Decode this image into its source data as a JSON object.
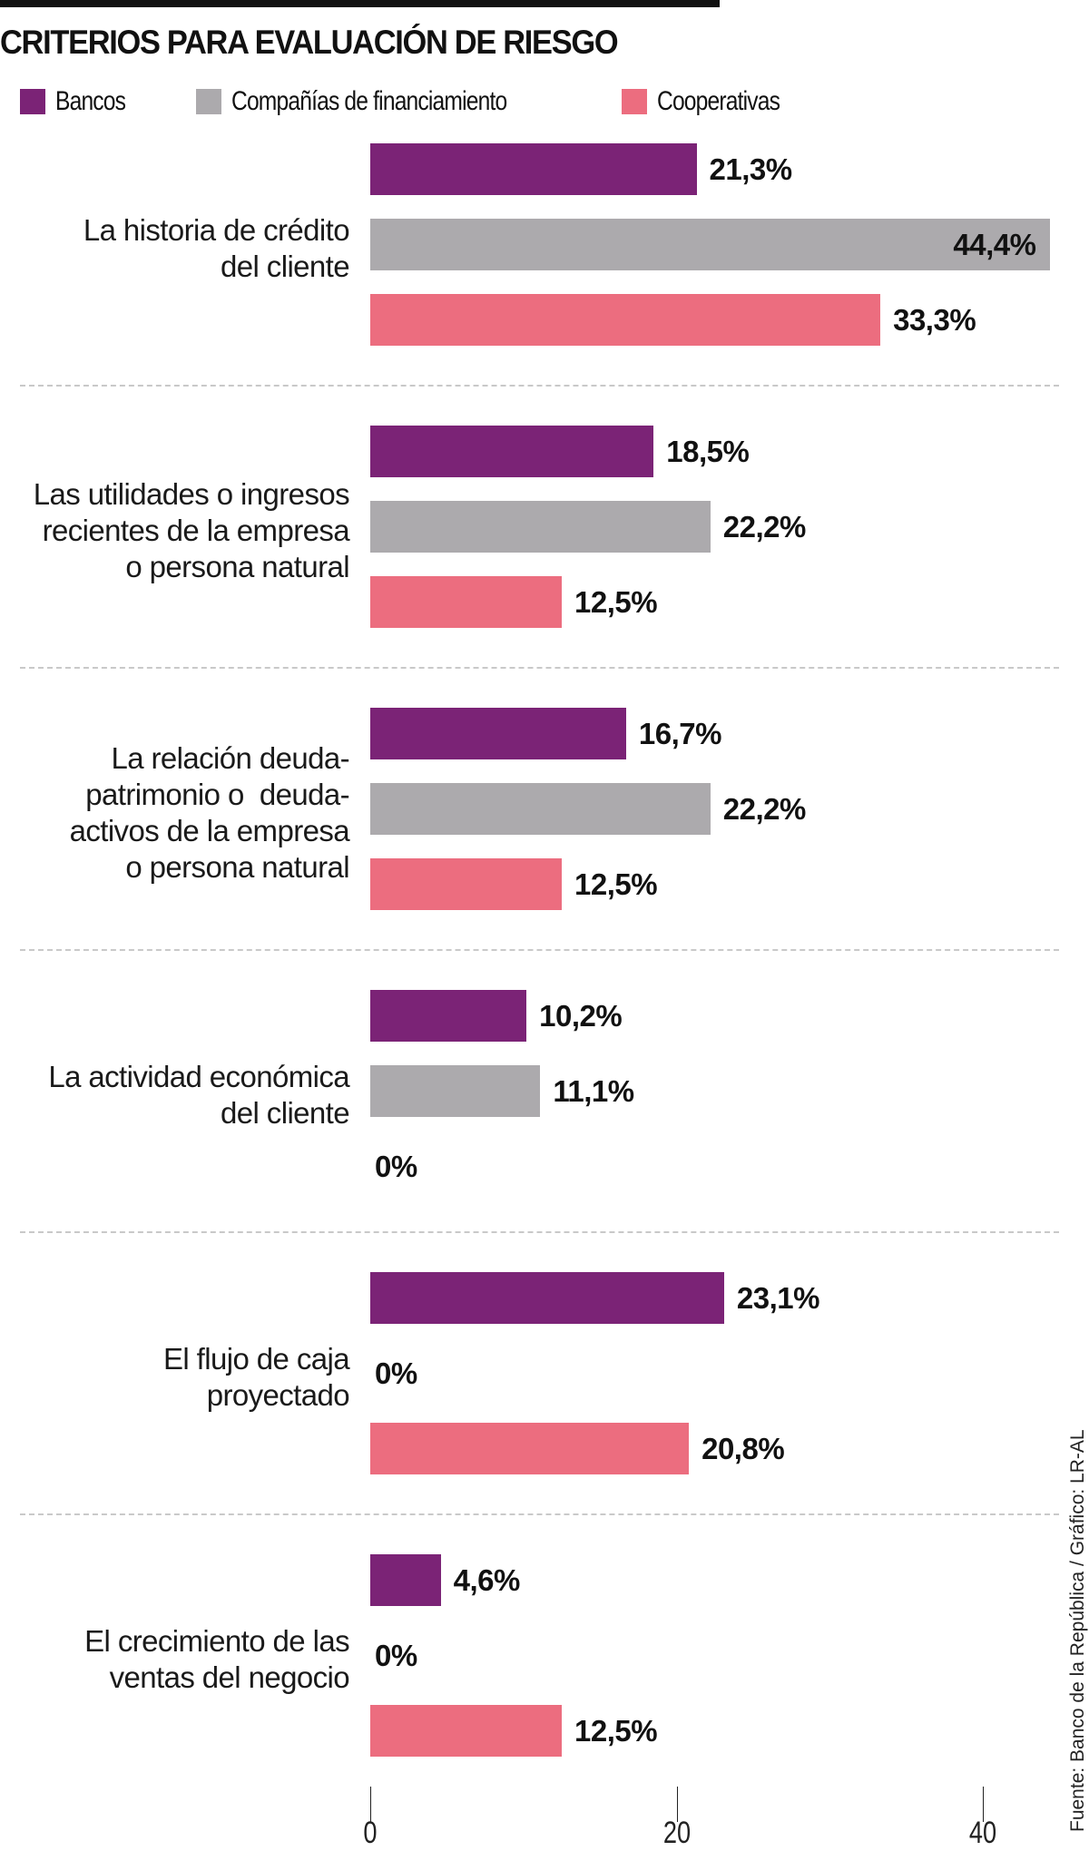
{
  "title": "CRITERIOS PARA EVALUACIÓN DE RIESGO",
  "source": "Fuente: Banco de la República / Gráfico: LR-AL",
  "legend": [
    {
      "label": "Bancos",
      "color": "#7B2376"
    },
    {
      "label": "Compañías de financiamiento",
      "color": "#ACAAAD"
    },
    {
      "label": "Cooperativas",
      "color": "#EC6D7F"
    }
  ],
  "chart_data": {
    "type": "bar",
    "orientation": "horizontal",
    "title": "CRITERIOS PARA EVALUACIÓN DE RIESGO",
    "xlabel": "",
    "ylabel": "",
    "xlim": [
      0,
      45
    ],
    "xticks": [
      0,
      20,
      40
    ],
    "xtick_labels": [
      "0",
      "20",
      "40"
    ],
    "grid": false,
    "legend_position": "top",
    "unit": "%",
    "categories": [
      "La historia de crédito\ndel cliente",
      "Las utilidades o ingresos\nrecientes de la empresa\no persona natural",
      "La relación deuda-\npatrimonio o  deuda-\nactivos de la empresa\no persona natural",
      "La actividad económica\ndel cliente",
      "El flujo de caja\nproyectado",
      "El crecimiento de las\nventas del negocio"
    ],
    "series": [
      {
        "name": "Bancos",
        "color": "#7B2376",
        "values": [
          21.3,
          18.5,
          16.7,
          10.2,
          23.1,
          4.6
        ],
        "labels": [
          "21,3%",
          "18,5%",
          "16,7%",
          "10,2%",
          "23,1%",
          "4,6%"
        ]
      },
      {
        "name": "Compañías de financiamiento",
        "color": "#ACAAAD",
        "values": [
          44.4,
          22.2,
          22.2,
          11.1,
          0,
          0
        ],
        "labels": [
          "44,4%",
          "22,2%",
          "22,2%",
          "11,1%",
          "0%",
          "0%"
        ]
      },
      {
        "name": "Cooperativas",
        "color": "#EC6D7F",
        "values": [
          33.3,
          12.5,
          12.5,
          0,
          20.8,
          12.5
        ],
        "labels": [
          "33,3%",
          "12,5%",
          "12,5%",
          "0%",
          "20,8%",
          "12,5%"
        ]
      }
    ],
    "inside_label_series_category": [
      [
        1,
        0
      ]
    ]
  }
}
